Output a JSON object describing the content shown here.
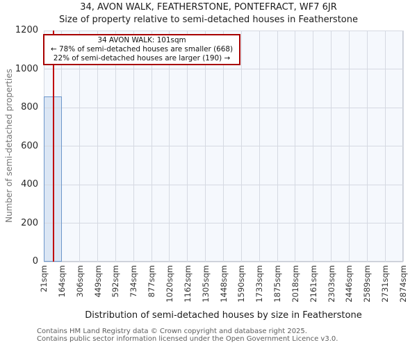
{
  "page": {
    "title": "34, AVON WALK, FEATHERSTONE, PONTEFRACT, WF7 6JR",
    "subtitle": "Size of property relative to semi-detached houses in Featherstone"
  },
  "annotation": {
    "line1": "34 AVON WALK: 101sqm",
    "line2": "← 78% of semi-detached houses are smaller (668)",
    "line3": "22% of semi-detached houses are larger (190) →"
  },
  "footer": {
    "line1": "Contains HM Land Registry data © Crown copyright and database right 2025.",
    "line2": "Contains public sector information licensed under the Open Government Licence v3.0."
  },
  "chart_data": {
    "type": "bar",
    "title": "34, AVON WALK, FEATHERSTONE, PONTEFRACT, WF7 6JR",
    "subtitle": "Size of property relative to semi-detached houses in Featherstone",
    "xlabel": "Distribution of semi-detached houses by size in Featherstone",
    "ylabel": "Number of semi-detached properties",
    "categories": [
      "21sqm",
      "164sqm",
      "306sqm",
      "449sqm",
      "592sqm",
      "734sqm",
      "877sqm",
      "1020sqm",
      "1162sqm",
      "1305sqm",
      "1448sqm",
      "1590sqm",
      "1733sqm",
      "1875sqm",
      "2018sqm",
      "2161sqm",
      "2303sqm",
      "2446sqm",
      "2589sqm",
      "2731sqm",
      "2874sqm"
    ],
    "bin_edges": [
      21,
      164,
      306,
      449,
      592,
      734,
      877,
      1020,
      1162,
      1305,
      1448,
      1590,
      1733,
      1875,
      2018,
      2161,
      2303,
      2446,
      2589,
      2731,
      2874
    ],
    "values": [
      859,
      0,
      0,
      0,
      0,
      0,
      0,
      0,
      0,
      0,
      0,
      0,
      0,
      0,
      0,
      0,
      0,
      0,
      0,
      0
    ],
    "ylim": [
      0,
      1200
    ],
    "yticks": [
      0,
      200,
      400,
      600,
      800,
      1000,
      1200
    ],
    "grid": true,
    "legend": false,
    "marker": {
      "value": 101,
      "unit": "sqm",
      "label": "34 AVON WALK: 101sqm",
      "smaller_pct": 78,
      "smaller_count": 668,
      "larger_pct": 22,
      "larger_count": 190
    },
    "colors": {
      "bar_fill": "#dbe6f4",
      "bar_edge": "#6c96ca",
      "marker_line": "#c00000",
      "annotation_border": "#a80000",
      "grid": "#d5d9e2",
      "plot_bg": "#f5f8fd"
    }
  }
}
